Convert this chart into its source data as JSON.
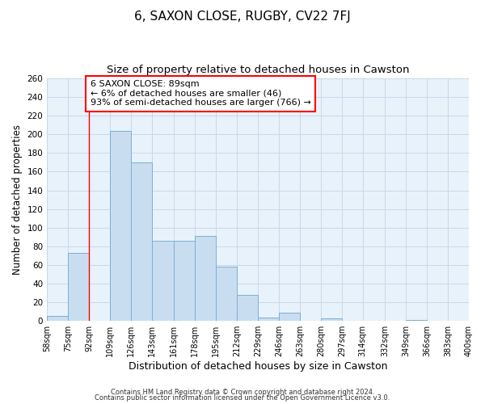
{
  "title": "6, SAXON CLOSE, RUGBY, CV22 7FJ",
  "subtitle": "Size of property relative to detached houses in Cawston",
  "xlabel": "Distribution of detached houses by size in Cawston",
  "ylabel": "Number of detached properties",
  "bin_labels": [
    "58sqm",
    "75sqm",
    "92sqm",
    "109sqm",
    "126sqm",
    "143sqm",
    "161sqm",
    "178sqm",
    "195sqm",
    "212sqm",
    "229sqm",
    "246sqm",
    "263sqm",
    "280sqm",
    "297sqm",
    "314sqm",
    "332sqm",
    "349sqm",
    "366sqm",
    "383sqm",
    "400sqm"
  ],
  "bar_values": [
    5,
    73,
    0,
    204,
    170,
    86,
    86,
    91,
    58,
    28,
    4,
    9,
    0,
    3,
    0,
    0,
    0,
    1,
    0,
    0,
    1
  ],
  "bin_edges": [
    58,
    75,
    92,
    109,
    126,
    143,
    161,
    178,
    195,
    212,
    229,
    246,
    263,
    280,
    297,
    314,
    332,
    349,
    366,
    383,
    400
  ],
  "bar_color": "#c9ddf0",
  "bar_edge_color": "#7bafd4",
  "red_line_x": 92,
  "annotation_line1": "6 SAXON CLOSE: 89sqm",
  "annotation_line2": "← 6% of detached houses are smaller (46)",
  "annotation_line3": "93% of semi-detached houses are larger (766) →",
  "ylim": [
    0,
    260
  ],
  "ytick_step": 20,
  "grid_color": "#c8d8ea",
  "background_color": "#e8f2fb",
  "footer_line1": "Contains HM Land Registry data © Crown copyright and database right 2024.",
  "footer_line2": "Contains public sector information licensed under the Open Government Licence v3.0.",
  "title_fontsize": 11,
  "subtitle_fontsize": 9.5,
  "axis_label_fontsize": 8.5,
  "tick_fontsize": 7,
  "annotation_fontsize": 8,
  "footer_fontsize": 6
}
